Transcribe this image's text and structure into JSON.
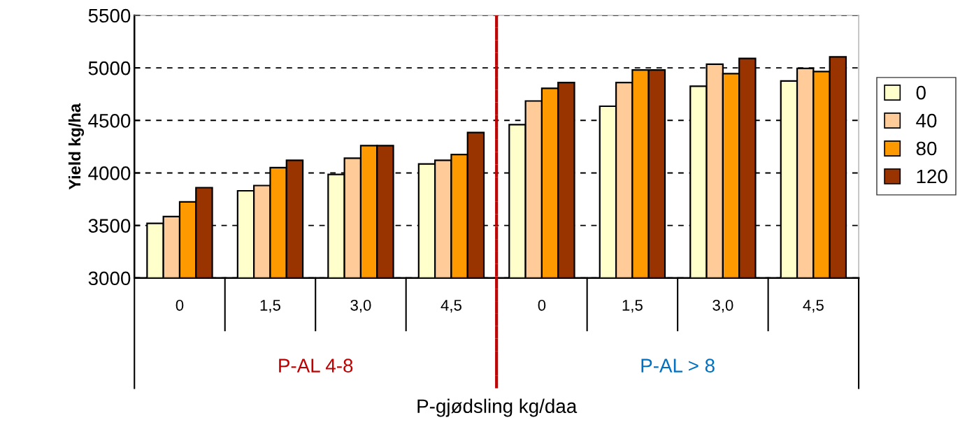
{
  "chart_data": {
    "type": "bar",
    "ylabel": "Yield kg/ha",
    "xlabel": "P-gjødsling kg/daa",
    "categories": [
      "0",
      "1,5",
      "3,0",
      "4,5",
      "0",
      "1,5",
      "3,0",
      "4,5"
    ],
    "series": [
      {
        "name": "0",
        "color": "#ffffcc",
        "values": [
          3520,
          3830,
          3985,
          4085,
          4460,
          4635,
          4825,
          4875
        ]
      },
      {
        "name": "40",
        "color": "#ffcc99",
        "values": [
          3585,
          3880,
          4140,
          4120,
          4685,
          4860,
          5035,
          4995
        ]
      },
      {
        "name": "80",
        "color": "#ff9900",
        "values": [
          3725,
          4050,
          4260,
          4175,
          4805,
          4980,
          4945,
          4965
        ]
      },
      {
        "name": "120",
        "color": "#993300",
        "values": [
          3860,
          4120,
          4260,
          4385,
          4860,
          4980,
          5090,
          5105
        ]
      }
    ],
    "ylim": [
      3000,
      5500
    ],
    "yticks": [
      3000,
      3500,
      4000,
      4500,
      5000,
      5500
    ],
    "grid": "y",
    "legend": "right",
    "annotations": [
      "P-AL 4-8",
      "P-AL > 8"
    ]
  }
}
